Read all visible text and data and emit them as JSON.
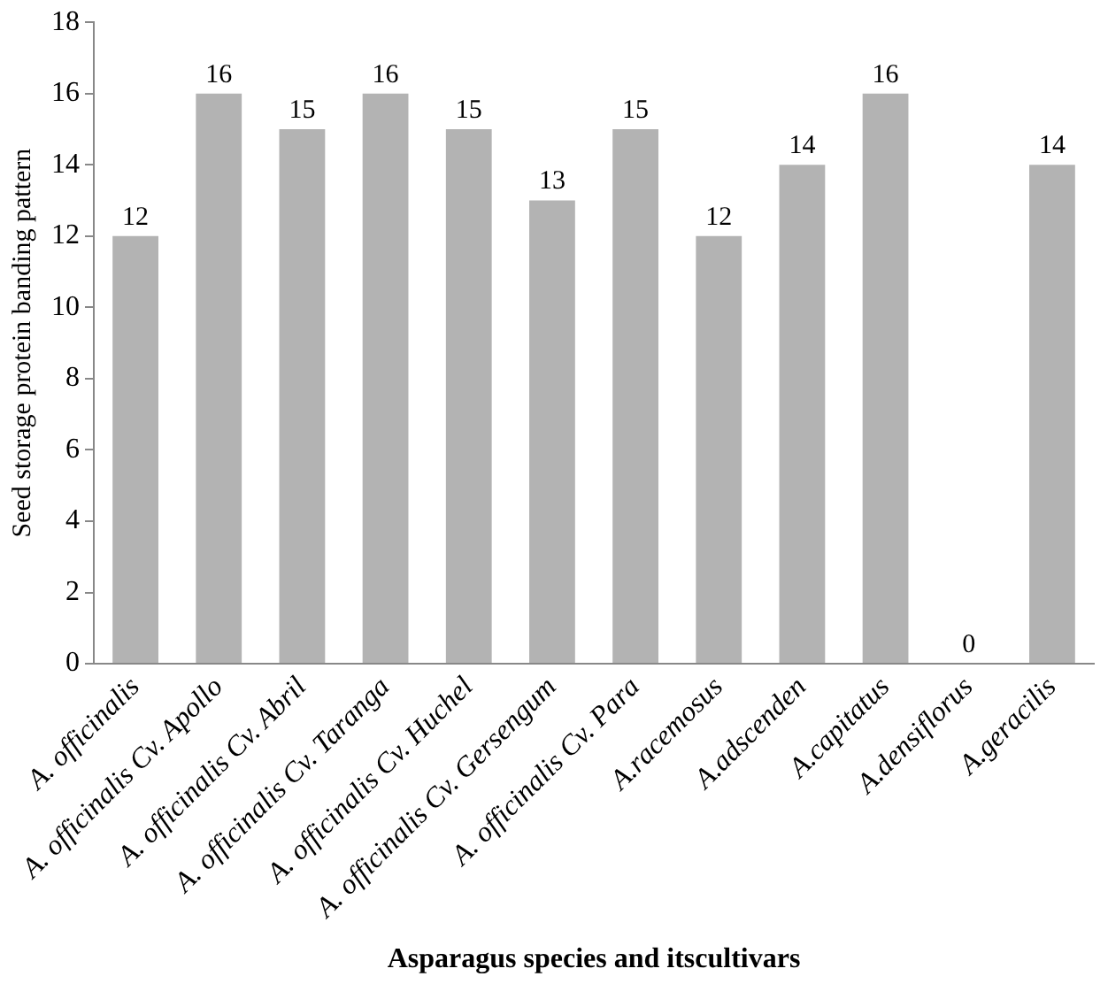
{
  "chart_data": {
    "type": "bar",
    "xlabel": "Asparagus species and itscultivars",
    "ylabel": "Seed storage protein banding pattern",
    "categories": [
      "A. officinalis",
      "A. officinalis Cv. Apollo",
      "A. officinalis Cv. Abril",
      "A. officinalis Cv. Taranga",
      "A. officinalis Cv. Huchel",
      "A. officinalis Cv. Gersengum",
      "A. officinalis Cv. Para",
      "A.racemosus",
      "A.adscenden",
      "A.capitatus",
      "A.densiflorus",
      "A.geracilis"
    ],
    "values": [
      12,
      16,
      15,
      16,
      15,
      13,
      15,
      12,
      14,
      16,
      0,
      14
    ],
    "color": "#b3b3b3",
    "ylim": [
      0,
      18
    ],
    "yticks": [
      0,
      2,
      4,
      6,
      8,
      10,
      12,
      14,
      16,
      18
    ],
    "grid": false,
    "legend": false,
    "data_labels": true
  }
}
